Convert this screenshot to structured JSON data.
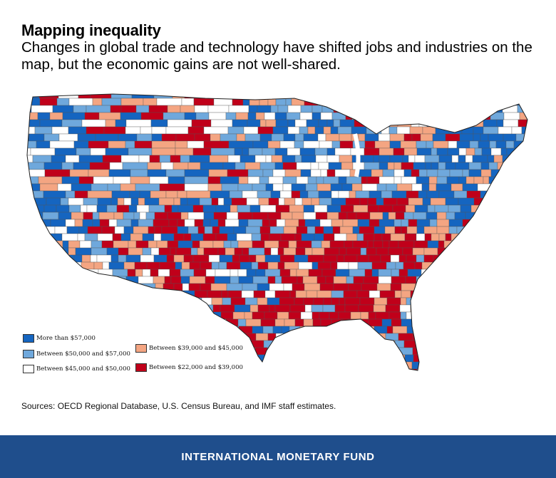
{
  "header": {
    "title": "Mapping inequality",
    "subtitle": "Changes in global trade and technology have shifted jobs and industries on the map, but the economic gains are not well-shared."
  },
  "legend": {
    "items": [
      {
        "label": "More than $57,000",
        "color": "#1565c0"
      },
      {
        "label": "Between $50,000 and $57,000",
        "color": "#6fa8dc"
      },
      {
        "label": "Between $45,000 and $50,000",
        "color": "#ffffff"
      },
      {
        "label": "Between $39,000 and $45,000",
        "color": "#f4a582"
      },
      {
        "label": "Between $22,000 and $39,000",
        "color": "#c0001a"
      }
    ]
  },
  "source": "Sources: OECD Regional Database, U.S. Census Bureau, and IMF staff estimates.",
  "footer": {
    "brand": "INTERNATIONAL MONETARY FUND",
    "color": "#1f4e8c"
  }
}
